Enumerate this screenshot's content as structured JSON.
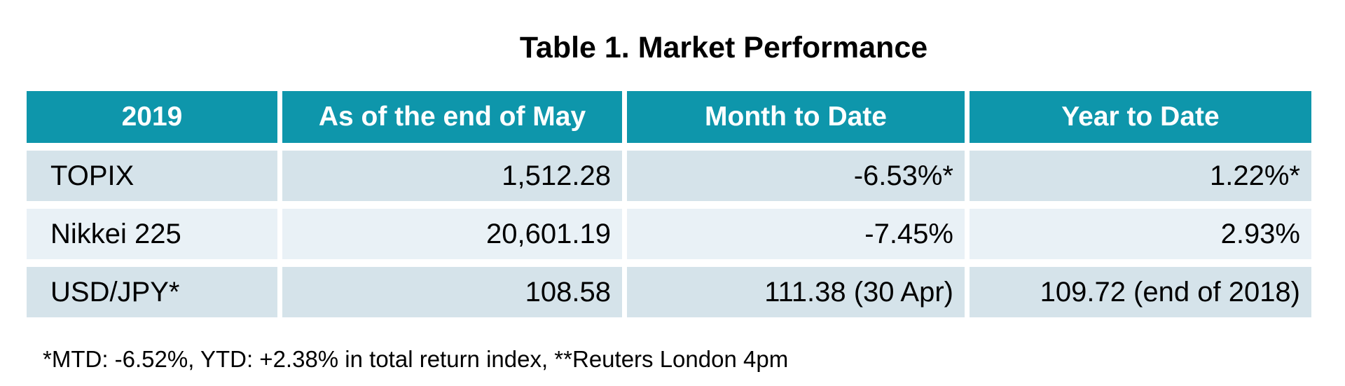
{
  "title": "Table 1. Market Performance",
  "table": {
    "headers": [
      "2019",
      "As of the end of May",
      "Month to Date",
      "Year to Date"
    ],
    "rows": [
      {
        "label": "TOPIX",
        "end_of_may": "1,512.28",
        "mtd": "-6.53%*",
        "ytd": "1.22%*"
      },
      {
        "label": "Nikkei 225",
        "end_of_may": "20,601.19",
        "mtd": "-7.45%",
        "ytd": "2.93%"
      },
      {
        "label": "USD/JPY*",
        "end_of_may": "108.58",
        "mtd": "111.38 (30 Apr)",
        "ytd": "109.72 (end of 2018)"
      }
    ]
  },
  "footnote": "*MTD: -6.52%, YTD: +2.38% in total return index, **Reuters London 4pm",
  "colors": {
    "header_bg": "#0E96AB",
    "header_text": "#FFFFFF",
    "row_odd_bg": "#D5E3EA",
    "row_even_bg": "#E9F1F6",
    "body_text": "#000000",
    "page_bg": "#FFFFFF"
  },
  "chart_data": {
    "type": "table",
    "title": "Table 1. Market Performance",
    "columns": [
      "2019",
      "As of the end of May",
      "Month to Date",
      "Year to Date"
    ],
    "rows": [
      [
        "TOPIX",
        "1,512.28",
        "-6.53%*",
        "1.22%*"
      ],
      [
        "Nikkei 225",
        "20,601.19",
        "-7.45%",
        "2.93%"
      ],
      [
        "USD/JPY*",
        "108.58",
        "111.38 (30 Apr)",
        "109.72 (end of 2018)"
      ]
    ],
    "footnote": "*MTD: -6.52%, YTD: +2.38% in total return index, **Reuters London 4pm"
  }
}
